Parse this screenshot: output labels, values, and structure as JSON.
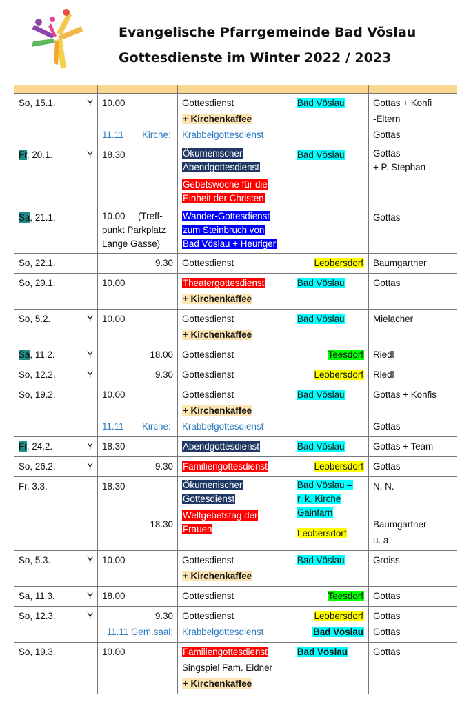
{
  "header": {
    "title_line1": "Evangelische Pfarrgemeinde Bad Vöslau",
    "title_line2": "Gottesdienste im Winter 2022 / 2023"
  },
  "rows": [
    {
      "date": "So, 15.1.",
      "y": "Y",
      "time1": "10.00",
      "time2": "11.11",
      "kirche": "Kirche:",
      "svc1": "Gottesdienst",
      "svc2": "+ Kirchenkaffee",
      "svc3": "Krabbelgottesdienst",
      "place": "Bad Vöslau",
      "pastor1": "Gottas + Konfi",
      "pastor2": "-Eltern",
      "pastor3": "Gottas"
    },
    {
      "date_day": "Fr",
      "date_rest": ", 20.1.",
      "y": "Y",
      "time1": "18.30",
      "svc1a": "Ökumenischer",
      "svc1b": "Abendgottesdienst",
      "svc2a": "Gebetswoche für die",
      "svc2b": "Einheit der Christen",
      "place": "Bad Vöslau",
      "pastor1": "Gottas",
      "pastor2": "+ P. Stephan"
    },
    {
      "date_day": "Sa",
      "date_rest": ", 21.1.",
      "time1": "10.00",
      "time_note1": "(Treff-",
      "time_note2": "punkt Parkplatz",
      "time_note3": "Lange Gasse)",
      "svc1": "Wander-Gottesdienst",
      "svc2": "zum Steinbruch von",
      "svc3": "Bad Vöslau + Heuriger",
      "pastor1": "Gottas"
    },
    {
      "date": "So, 22.1.",
      "time1": "9.30",
      "svc1": "Gottesdienst",
      "place": "Leobersdorf",
      "pastor1": "Baumgartner"
    },
    {
      "date": "So, 29.1.",
      "time1": "10.00",
      "svc1": "Theatergottesdienst",
      "svc2": "+ Kirchenkaffee",
      "place": "Bad Vöslau",
      "pastor1": "Gottas"
    },
    {
      "date": "So, 5.2.",
      "y": "Y",
      "time1": "10.00",
      "svc1": "Gottesdienst",
      "svc2": "+ Kirchenkaffee",
      "place": "Bad Vöslau",
      "pastor1": "Mielacher"
    },
    {
      "date_day": "Sa",
      "date_rest": ", 11.2.",
      "y": "Y",
      "time1": "18.00",
      "svc1": "Gottesdienst",
      "place": "Teesdorf",
      "pastor1": "Riedl"
    },
    {
      "date": "So, 12.2.",
      "y": "Y",
      "time1": "9.30",
      "svc1": "Gottesdienst",
      "place": "Leobersdorf",
      "pastor1": "Riedl"
    },
    {
      "date": "So, 19.2.",
      "time1": "10.00",
      "time2": "11.11",
      "kirche": "Kirche:",
      "svc1": "Gottesdienst",
      "svc2": "+ Kirchenkaffee",
      "svc3": "Krabbelgottesdienst",
      "place": "Bad Vöslau",
      "pastor1": "Gottas + Konfis",
      "pastor3": "Gottas"
    },
    {
      "date_day": "Fr",
      "date_rest": ", 24.2.",
      "y": "Y",
      "time1": "18.30",
      "svc1": "Abendgottesdienst",
      "place": "Bad Vöslau",
      "pastor1": "Gottas + Team"
    },
    {
      "date": "So, 26.2.",
      "y": "Y",
      "time1": "9.30",
      "svc1": "Familiengottesdienst",
      "place": "Leobersdorf",
      "pastor1": "Gottas"
    },
    {
      "date": "Fr, 3.3.",
      "time1": "18.30",
      "time2": "18.30",
      "svc1a": "Ökumenischer",
      "svc1b": "Gottesdienst",
      "svc2a": "Weltgebetstag der",
      "svc2b": "Frauen",
      "place1": "Bad Vöslau –",
      "place2": "r. k. Kirche",
      "place3": "Gainfarn",
      "place4": "Leobersdorf",
      "pastor1": "N. N.",
      "pastor2": "Baumgartner",
      "pastor3": "u. a."
    },
    {
      "date": "So, 5.3.",
      "y": "Y",
      "time1": "10.00",
      "svc1": "Gottesdienst",
      "svc2": "+ Kirchenkaffee",
      "place": "Bad Vöslau",
      "pastor1": "Groiss"
    },
    {
      "date": "Sa, 11.3.",
      "y": "Y",
      "time1": "18.00",
      "svc1": "Gottesdienst",
      "place": "Teesdorf",
      "pastor1": "Gottas"
    },
    {
      "date": "So, 12.3.",
      "y": "Y",
      "time1": "9.30",
      "time2": "11.11 Gem.saal:",
      "svc1": "Gottesdienst",
      "svc2": "Krabbelgottesdienst",
      "place1": "Leobersdorf",
      "place2": "Bad Vöslau",
      "pastor1": "Gottas",
      "pastor2": "Gottas"
    },
    {
      "date": "So, 19.3.",
      "time1": "10.00",
      "svc1": "Familiengottesdienst",
      "svc2": "Singspiel Fam. Eidner",
      "svc3": "+ Kirchenkaffee",
      "place": "Bad Vöslau",
      "pastor1": "Gottas"
    }
  ]
}
